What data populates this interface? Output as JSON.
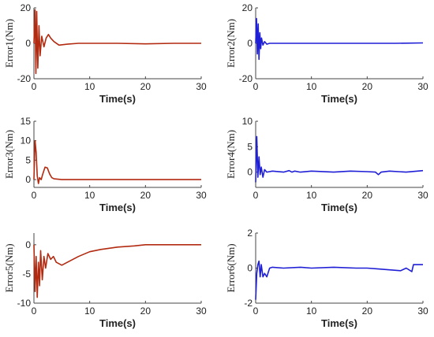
{
  "colors": {
    "series_1": "#b22a10",
    "series_2": "#1f1fd6",
    "axis": "#444444"
  },
  "chart_data": [
    {
      "type": "line",
      "id": "error1",
      "xlabel": "Time(s)",
      "ylabel": "Error1(Nm)",
      "xlim": [
        0,
        30
      ],
      "ylim": [
        -20,
        20
      ],
      "xticks": [
        0,
        10,
        20,
        30
      ],
      "yticks": [
        -20,
        0,
        20
      ],
      "color_key": "series_1",
      "x": [
        0,
        0.2,
        0.35,
        0.5,
        0.7,
        0.9,
        1.1,
        1.4,
        1.8,
        2.2,
        2.6,
        3.0,
        3.6,
        4.5,
        6,
        8,
        10,
        15,
        20,
        25,
        30
      ],
      "y": [
        0,
        19,
        -17,
        18,
        -14,
        10,
        -7,
        4,
        -2,
        3,
        5,
        3,
        1,
        -1,
        -0.5,
        0,
        0,
        0,
        -0.3,
        0,
        0
      ]
    },
    {
      "type": "line",
      "id": "error2",
      "xlabel": "Time(s)",
      "ylabel": "Error2(Nm)",
      "xlim": [
        0,
        30
      ],
      "ylim": [
        -20,
        20
      ],
      "xticks": [
        0,
        10,
        20,
        30
      ],
      "yticks": [
        -20,
        0,
        20
      ],
      "color_key": "series_2",
      "x": [
        0,
        0.15,
        0.3,
        0.45,
        0.6,
        0.75,
        0.9,
        1.05,
        1.3,
        1.6,
        2.0,
        2.5,
        3.0,
        5,
        10,
        15,
        20,
        25,
        30
      ],
      "y": [
        0,
        14,
        -6,
        11,
        -9,
        6,
        -3,
        3,
        -1,
        1,
        -0.5,
        0,
        0,
        0,
        0,
        0,
        0,
        0,
        0.2
      ]
    },
    {
      "type": "line",
      "id": "error3",
      "xlabel": "Time(s)",
      "ylabel": "Error3(Nm)",
      "xlim": [
        0,
        30
      ],
      "ylim": [
        -2,
        15
      ],
      "xticks": [
        0,
        10,
        20,
        30
      ],
      "yticks": [
        0,
        5,
        10,
        15
      ],
      "color_key": "series_1",
      "x": [
        0,
        0.2,
        0.4,
        0.6,
        0.8,
        1.0,
        1.3,
        1.6,
        2.0,
        2.4,
        2.8,
        3.2,
        3.6,
        5,
        10,
        15,
        20,
        25,
        30
      ],
      "y": [
        0,
        10,
        7,
        1,
        -1,
        0.5,
        0,
        1.5,
        3.2,
        3.0,
        1.5,
        0.5,
        0.2,
        0,
        0,
        0,
        0,
        0,
        0
      ]
    },
    {
      "type": "line",
      "id": "error4",
      "xlabel": "Time(s)",
      "ylabel": "Error4(Nm)",
      "xlim": [
        0,
        30
      ],
      "ylim": [
        -3,
        10
      ],
      "xticks": [
        0,
        10,
        20,
        30
      ],
      "yticks": [
        0,
        5,
        10
      ],
      "color_key": "series_2",
      "x": [
        0,
        0.2,
        0.4,
        0.6,
        0.8,
        1.0,
        1.3,
        1.6,
        2.0,
        3,
        5,
        6,
        6.5,
        7,
        8,
        10,
        14,
        17,
        20,
        21.5,
        22,
        22.5,
        24,
        27,
        30
      ],
      "y": [
        -2,
        7,
        -1,
        3,
        -0.5,
        1,
        -1,
        0.5,
        0,
        0.2,
        0,
        0.3,
        0,
        0.2,
        0,
        0.2,
        0,
        0.2,
        0.1,
        0,
        -0.5,
        0,
        0.2,
        0,
        0.3
      ]
    },
    {
      "type": "line",
      "id": "error5",
      "xlabel": "Time(s)",
      "ylabel": "Error5(Nm)",
      "xlim": [
        0,
        30
      ],
      "ylim": [
        -10,
        2
      ],
      "xticks": [
        0,
        10,
        20,
        30
      ],
      "yticks": [
        -10,
        -5,
        0
      ],
      "color_key": "series_1",
      "x": [
        0,
        0.2,
        0.4,
        0.6,
        0.8,
        1.0,
        1.2,
        1.5,
        1.8,
        2.1,
        2.5,
        3.0,
        3.5,
        4.0,
        5,
        6,
        8,
        10,
        12,
        15,
        18,
        20,
        25,
        30
      ],
      "y": [
        0,
        -8,
        -2,
        -9,
        -3,
        -7,
        -1,
        -6,
        -2,
        -4,
        -1.5,
        -2.5,
        -2,
        -3,
        -3.5,
        -3,
        -2,
        -1.2,
        -0.8,
        -0.4,
        -0.2,
        0,
        0,
        0
      ]
    },
    {
      "type": "line",
      "id": "error6",
      "xlabel": "Time(s)",
      "ylabel": "Error6(Nm)",
      "xlim": [
        0,
        30
      ],
      "ylim": [
        -2,
        2
      ],
      "xticks": [
        0,
        10,
        20,
        30
      ],
      "yticks": [
        -2,
        0,
        2
      ],
      "color_key": "series_2",
      "x": [
        0,
        0.2,
        0.4,
        0.6,
        0.8,
        1.0,
        1.3,
        1.6,
        2.0,
        2.5,
        3,
        5,
        8,
        10,
        14,
        18,
        20,
        22,
        24,
        26,
        27,
        28,
        28.3,
        30
      ],
      "y": [
        -1.8,
        -0.3,
        0.2,
        0.4,
        -0.5,
        0.2,
        -0.5,
        -0.3,
        -0.5,
        0,
        0.05,
        0,
        0.05,
        0,
        0.05,
        0,
        0,
        -0.05,
        -0.1,
        -0.15,
        0,
        -0.2,
        0.2,
        0.2
      ]
    }
  ]
}
